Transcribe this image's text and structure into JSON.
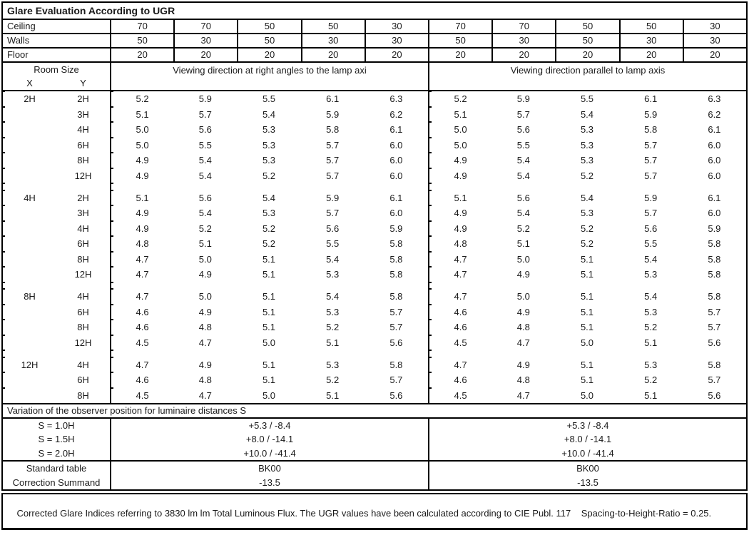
{
  "title": "Glare Evaluation According to UGR",
  "reflectance_rows": [
    {
      "label": "Ceiling",
      "values": [
        "70",
        "70",
        "50",
        "50",
        "30",
        "70",
        "70",
        "50",
        "50",
        "30"
      ]
    },
    {
      "label": "Walls",
      "values": [
        "50",
        "30",
        "50",
        "30",
        "30",
        "50",
        "30",
        "50",
        "30",
        "30"
      ]
    },
    {
      "label": "Floor",
      "values": [
        "20",
        "20",
        "20",
        "20",
        "20",
        "20",
        "20",
        "20",
        "20",
        "20"
      ]
    }
  ],
  "header": {
    "room_size_label": "Room Size",
    "x_label": "X",
    "y_label": "Y",
    "left_group_label": "Viewing direction at right angles to the lamp axi",
    "right_group_label": "Viewing direction parallel to lamp axis"
  },
  "ugr_sections": [
    {
      "x": "2H",
      "rows": [
        {
          "y": "2H",
          "left": [
            "5.2",
            "5.9",
            "5.5",
            "6.1",
            "6.3"
          ],
          "right": [
            "5.2",
            "5.9",
            "5.5",
            "6.1",
            "6.3"
          ]
        },
        {
          "y": "3H",
          "left": [
            "5.1",
            "5.7",
            "5.4",
            "5.9",
            "6.2"
          ],
          "right": [
            "5.1",
            "5.7",
            "5.4",
            "5.9",
            "6.2"
          ]
        },
        {
          "y": "4H",
          "left": [
            "5.0",
            "5.6",
            "5.3",
            "5.8",
            "6.1"
          ],
          "right": [
            "5.0",
            "5.6",
            "5.3",
            "5.8",
            "6.1"
          ]
        },
        {
          "y": "6H",
          "left": [
            "5.0",
            "5.5",
            "5.3",
            "5.7",
            "6.0"
          ],
          "right": [
            "5.0",
            "5.5",
            "5.3",
            "5.7",
            "6.0"
          ]
        },
        {
          "y": "8H",
          "left": [
            "4.9",
            "5.4",
            "5.3",
            "5.7",
            "6.0"
          ],
          "right": [
            "4.9",
            "5.4",
            "5.3",
            "5.7",
            "6.0"
          ]
        },
        {
          "y": "12H",
          "left": [
            "4.9",
            "5.4",
            "5.2",
            "5.7",
            "6.0"
          ],
          "right": [
            "4.9",
            "5.4",
            "5.2",
            "5.7",
            "6.0"
          ]
        }
      ]
    },
    {
      "x": "4H",
      "rows": [
        {
          "y": "2H",
          "left": [
            "5.1",
            "5.6",
            "5.4",
            "5.9",
            "6.1"
          ],
          "right": [
            "5.1",
            "5.6",
            "5.4",
            "5.9",
            "6.1"
          ]
        },
        {
          "y": "3H",
          "left": [
            "4.9",
            "5.4",
            "5.3",
            "5.7",
            "6.0"
          ],
          "right": [
            "4.9",
            "5.4",
            "5.3",
            "5.7",
            "6.0"
          ]
        },
        {
          "y": "4H",
          "left": [
            "4.9",
            "5.2",
            "5.2",
            "5.6",
            "5.9"
          ],
          "right": [
            "4.9",
            "5.2",
            "5.2",
            "5.6",
            "5.9"
          ]
        },
        {
          "y": "6H",
          "left": [
            "4.8",
            "5.1",
            "5.2",
            "5.5",
            "5.8"
          ],
          "right": [
            "4.8",
            "5.1",
            "5.2",
            "5.5",
            "5.8"
          ]
        },
        {
          "y": "8H",
          "left": [
            "4.7",
            "5.0",
            "5.1",
            "5.4",
            "5.8"
          ],
          "right": [
            "4.7",
            "5.0",
            "5.1",
            "5.4",
            "5.8"
          ]
        },
        {
          "y": "12H",
          "left": [
            "4.7",
            "4.9",
            "5.1",
            "5.3",
            "5.8"
          ],
          "right": [
            "4.7",
            "4.9",
            "5.1",
            "5.3",
            "5.8"
          ]
        }
      ]
    },
    {
      "x": "8H",
      "rows": [
        {
          "y": "4H",
          "left": [
            "4.7",
            "5.0",
            "5.1",
            "5.4",
            "5.8"
          ],
          "right": [
            "4.7",
            "5.0",
            "5.1",
            "5.4",
            "5.8"
          ]
        },
        {
          "y": "6H",
          "left": [
            "4.6",
            "4.9",
            "5.1",
            "5.3",
            "5.7"
          ],
          "right": [
            "4.6",
            "4.9",
            "5.1",
            "5.3",
            "5.7"
          ]
        },
        {
          "y": "8H",
          "left": [
            "4.6",
            "4.8",
            "5.1",
            "5.2",
            "5.7"
          ],
          "right": [
            "4.6",
            "4.8",
            "5.1",
            "5.2",
            "5.7"
          ]
        },
        {
          "y": "12H",
          "left": [
            "4.5",
            "4.7",
            "5.0",
            "5.1",
            "5.6"
          ],
          "right": [
            "4.5",
            "4.7",
            "5.0",
            "5.1",
            "5.6"
          ]
        }
      ]
    },
    {
      "x": "12H",
      "rows": [
        {
          "y": "4H",
          "left": [
            "4.7",
            "4.9",
            "5.1",
            "5.3",
            "5.8"
          ],
          "right": [
            "4.7",
            "4.9",
            "5.1",
            "5.3",
            "5.8"
          ]
        },
        {
          "y": "6H",
          "left": [
            "4.6",
            "4.8",
            "5.1",
            "5.2",
            "5.7"
          ],
          "right": [
            "4.6",
            "4.8",
            "5.1",
            "5.2",
            "5.7"
          ]
        },
        {
          "y": "8H",
          "left": [
            "4.5",
            "4.7",
            "5.0",
            "5.1",
            "5.6"
          ],
          "right": [
            "4.5",
            "4.7",
            "5.0",
            "5.1",
            "5.6"
          ]
        }
      ]
    }
  ],
  "variation": {
    "header": "Variation of the observer position for luminaire distances S",
    "rows": [
      {
        "label": "S = 1.0H",
        "left": "+5.3 / -8.4",
        "right": "+5.3 / -8.4"
      },
      {
        "label": "S = 1.5H",
        "left": "+8.0 / -14.1",
        "right": "+8.0 / -14.1"
      },
      {
        "label": "S = 2.0H",
        "left": "+10.0 / -41.4",
        "right": "+10.0 / -41.4"
      }
    ]
  },
  "summary_rows": [
    {
      "label": "Standard table",
      "left": "BK00",
      "right": "BK00"
    },
    {
      "label": "Correction Summand",
      "left": "-13.5",
      "right": "-13.5"
    }
  ],
  "footer_note": "Corrected Glare Indices referring to 3830 lm lm Total Luminous Flux. The UGR values have been calculated according to CIE Publ. 117    Spacing-to-Height-Ratio = 0.25."
}
